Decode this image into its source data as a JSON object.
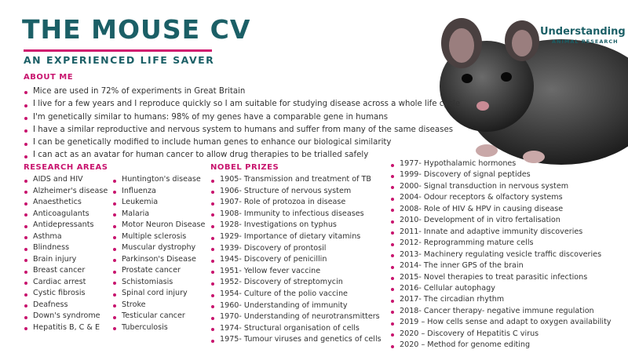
{
  "header": {
    "title": "THE MOUSE CV",
    "subtitle": "AN EXPERIENCED LIFE SAVER"
  },
  "logo": {
    "line1": "Understanding",
    "line2": "ANIMAL RESEARCH"
  },
  "about": {
    "heading": "ABOUT ME",
    "items": [
      "Mice are used in 72% of experiments in Great Britain",
      "I live for a few years and I reproduce quickly so I am suitable for studying disease across a whole life cycle",
      "I'm genetically similar to humans: 98% of my genes have a comparable gene in humans",
      "I have a similar reproductive and nervous system to humans and suffer from many of the same diseases",
      "I can be genetically modified to include human genes to enhance our biological similarity",
      "I can act as an avatar for human cancer to allow drug therapies to be trialled safely"
    ]
  },
  "research": {
    "heading": "RESEARCH AREAS",
    "column1": [
      "AIDS and HIV",
      "Alzheimer's disease",
      "Anaesthetics",
      "Anticoagulants",
      "Antidepressants",
      "Asthma",
      "Blindness",
      "Brain injury",
      "Breast cancer",
      "Cardiac arrest",
      "Cystic fibrosis",
      "Deafness",
      "Down's syndrome",
      "Hepatitis B, C & E"
    ],
    "column2": [
      "Huntington's disease",
      "Influenza",
      "Leukemia",
      "Malaria",
      "Motor Neuron Disease",
      "Multiple sclerosis",
      "Muscular dystrophy",
      "Parkinson's Disease",
      "Prostate cancer",
      "Schistomiasis",
      "Spinal cord injury",
      "Stroke",
      "Testicular cancer",
      "Tuberculosis"
    ]
  },
  "nobel": {
    "heading": "NOBEL PRIZES",
    "column1": [
      "1905- Transmission and treatment of TB",
      "1906- Structure of nervous system",
      "1907- Role of protozoa in disease",
      "1908- Immunity to infectious diseases",
      "1928- Investigations on typhus",
      "1929- Importance of dietary vitamins",
      "1939- Discovery of prontosil",
      "1945- Discovery of penicillin",
      "1951- Yellow fever vaccine",
      "1952- Discovery of streptomycin",
      "1954- Culture of the polio vaccine",
      "1960- Understanding of immunity",
      "1970- Understanding of neurotransmitters",
      "1974- Structural organisation of cells",
      "1975- Tumour viruses and genetics of cells"
    ],
    "column2": [
      "1977- Hypothalamic hormones",
      "1999- Discovery of signal peptides",
      "2000- Signal transduction in nervous system",
      "2004- Odour receptors & olfactory systems",
      "2008- Role of HIV & HPV in causing disease",
      "2010- Development of in vitro fertalisation",
      "2011- Innate and adaptive immunity discoveries",
      "2012- Reprogramming mature cells",
      "2013- Machinery regulating vesicle traffic discoveries",
      "2014- The inner GPS of the brain",
      "2015- Novel therapies to treat parasitic infections",
      "2016- Cellular autophagy",
      "2017- The circadian rhythm",
      "2018- Cancer therapy- negative immune regulation",
      "2019 – How cells sense and adapt to oxygen availability",
      "2020 – Discovery of Hepatitis C virus",
      "2020 – Method for genome editing"
    ]
  }
}
